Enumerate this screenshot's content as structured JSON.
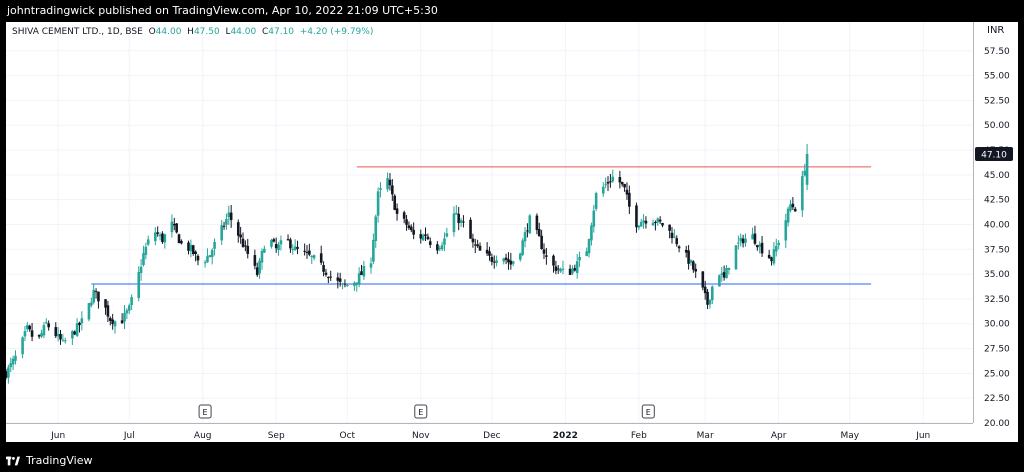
{
  "header": {
    "publisher_text": "johntradingwick published on TradingView.com, Apr 10, 2022 21:09 UTC+5:30"
  },
  "legend": {
    "symbol": "SHIVA CEMENT LTD., 1D, BSE",
    "o_label": "O",
    "o_value": "44.00",
    "h_label": "H",
    "h_value": "47.50",
    "l_label": "L",
    "l_value": "44.00",
    "c_label": "C",
    "c_value": "47.10",
    "change": "+4.20 (+9.79%)"
  },
  "footer": {
    "brand": "TradingView"
  },
  "colors": {
    "up": "#26a69a",
    "down": "#131722",
    "resistance": "#ef5350",
    "support": "#2962ff",
    "price_tag": "#131722"
  },
  "chart_data": {
    "type": "candlestick",
    "currency": "INR",
    "y_ticks": [
      20.0,
      22.5,
      25.0,
      27.5,
      30.0,
      32.5,
      35.0,
      37.5,
      40.0,
      42.5,
      45.0,
      47.5,
      50.0,
      52.5,
      55.0,
      57.5
    ],
    "y_tick_labels": [
      "20.00",
      "22.50",
      "25.00",
      "27.50",
      "30.00",
      "32.50",
      "35.00",
      "37.50",
      "40.00",
      "42.50",
      "45.00",
      "47.50",
      "50.00",
      "52.50",
      "55.00",
      "57.50"
    ],
    "ylim": [
      20.0,
      60.4
    ],
    "x_ticks": [
      "Jun",
      "Jul",
      "Aug",
      "Sep",
      "Oct",
      "Nov",
      "Dec",
      "2022",
      "Feb",
      "Mar",
      "Apr",
      "May",
      "Jun"
    ],
    "x_tick_days": [
      22,
      52,
      83,
      114,
      144,
      175,
      205,
      236,
      267,
      295,
      326,
      356,
      387
    ],
    "xlim": [
      0,
      408
    ],
    "last_price": 47.1,
    "last_price_label": "47.10",
    "earnings_markers": [
      {
        "day": 84,
        "label": "E"
      },
      {
        "day": 175,
        "label": "E"
      },
      {
        "day": 271,
        "label": "E"
      }
    ],
    "levels": [
      {
        "name": "resistance",
        "value": 45.8,
        "from_day": 148,
        "to_day": 365
      },
      {
        "name": "support",
        "value": 34.0,
        "from_day": 36,
        "to_day": 365
      }
    ],
    "anchors": [
      [
        0,
        25.0
      ],
      [
        5,
        27.0
      ],
      [
        9,
        29.5
      ],
      [
        13,
        28.0
      ],
      [
        17,
        30.0
      ],
      [
        20,
        29.2
      ],
      [
        24,
        28.0
      ],
      [
        28,
        29.0
      ],
      [
        33,
        30.5
      ],
      [
        37,
        33.2
      ],
      [
        41,
        32.0
      ],
      [
        44,
        30.5
      ],
      [
        48,
        30.0
      ],
      [
        52,
        31.5
      ],
      [
        55,
        34.0
      ],
      [
        58,
        37.0
      ],
      [
        62,
        39.5
      ],
      [
        66,
        38.5
      ],
      [
        70,
        40.0
      ],
      [
        74,
        38.0
      ],
      [
        78,
        37.5
      ],
      [
        82,
        36.0
      ],
      [
        86,
        37.0
      ],
      [
        90,
        39.0
      ],
      [
        94,
        41.0
      ],
      [
        98,
        39.0
      ],
      [
        102,
        37.0
      ],
      [
        106,
        35.0
      ],
      [
        110,
        39.0
      ],
      [
        114,
        37.5
      ],
      [
        118,
        38.5
      ],
      [
        122,
        37.5
      ],
      [
        126,
        37.0
      ],
      [
        130,
        36.5
      ],
      [
        134,
        35.5
      ],
      [
        138,
        34.5
      ],
      [
        142,
        33.8
      ],
      [
        146,
        34.0
      ],
      [
        150,
        35.0
      ],
      [
        154,
        36.5
      ],
      [
        157,
        43.0
      ],
      [
        161,
        44.5
      ],
      [
        165,
        41.0
      ],
      [
        169,
        40.0
      ],
      [
        173,
        38.5
      ],
      [
        177,
        39.0
      ],
      [
        181,
        37.5
      ],
      [
        185,
        38.5
      ],
      [
        189,
        41.0
      ],
      [
        193,
        40.0
      ],
      [
        197,
        38.0
      ],
      [
        201,
        37.0
      ],
      [
        205,
        36.5
      ],
      [
        209,
        37.0
      ],
      [
        213,
        36.0
      ],
      [
        217,
        37.5
      ],
      [
        221,
        40.5
      ],
      [
        225,
        38.5
      ],
      [
        229,
        36.0
      ],
      [
        233,
        35.5
      ],
      [
        237,
        35.0
      ],
      [
        241,
        36.0
      ],
      [
        245,
        37.5
      ],
      [
        249,
        43.0
      ],
      [
        253,
        44.0
      ],
      [
        257,
        45.0
      ],
      [
        261,
        43.5
      ],
      [
        265,
        40.0
      ],
      [
        269,
        40.5
      ],
      [
        273,
        40.5
      ],
      [
        277,
        40.0
      ],
      [
        281,
        39.0
      ],
      [
        285,
        37.5
      ],
      [
        289,
        36.0
      ],
      [
        293,
        34.0
      ],
      [
        296,
        32.0
      ],
      [
        300,
        35.5
      ],
      [
        303,
        34.5
      ],
      [
        307,
        37.5
      ],
      [
        311,
        38.5
      ],
      [
        315,
        38.8
      ],
      [
        319,
        37.5
      ],
      [
        323,
        36.5
      ],
      [
        327,
        39.0
      ],
      [
        331,
        42.0
      ],
      [
        334,
        41.5
      ],
      [
        336,
        44.5
      ],
      [
        338,
        47.1
      ]
    ]
  }
}
